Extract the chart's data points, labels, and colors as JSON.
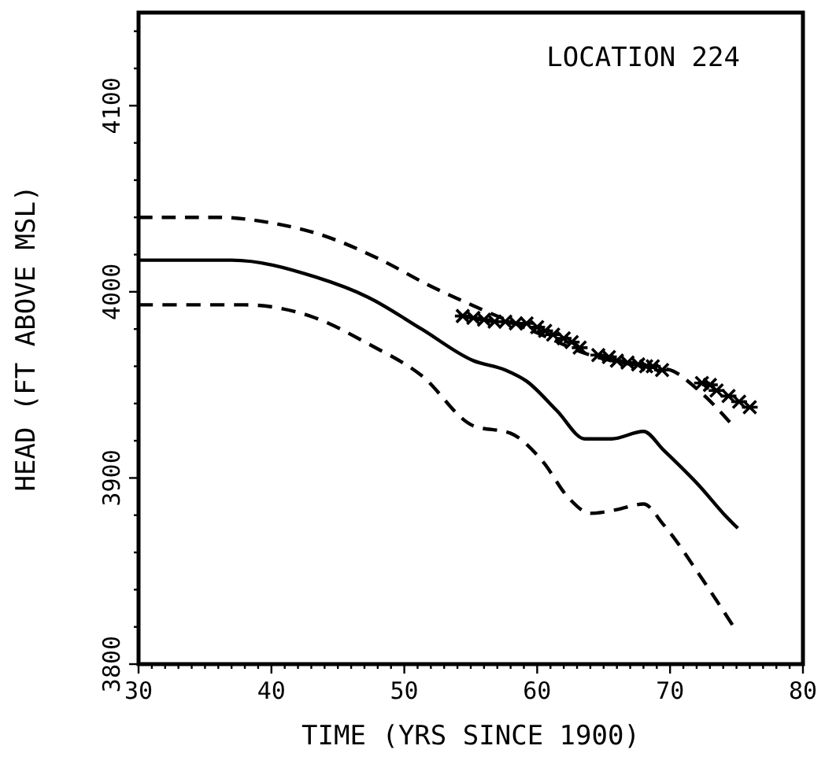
{
  "chart_data": {
    "type": "line",
    "xlabel": "TIME (YRS SINCE 1900)",
    "ylabel": "HEAD (FT ABOVE MSL)",
    "annotations": [
      "LOCATION 224"
    ],
    "xlim": [
      30,
      80
    ],
    "ylim": [
      3800,
      4150
    ],
    "xticks": [
      30,
      {
        "value": 31,
        "label": null
      },
      {
        "value": 32,
        "label": null
      },
      {
        "value": 33,
        "label": null
      },
      {
        "value": 34,
        "label": null
      },
      {
        "value": 35,
        "label": null
      },
      {
        "value": 36,
        "label": null
      },
      {
        "value": 37,
        "label": null
      },
      {
        "value": 38,
        "label": null
      },
      {
        "value": 39,
        "label": null
      },
      40,
      {
        "value": 41,
        "label": null
      },
      {
        "value": 42,
        "label": null
      },
      {
        "value": 43,
        "label": null
      },
      {
        "value": 44,
        "label": null
      },
      {
        "value": 45,
        "label": null
      },
      {
        "value": 46,
        "label": null
      },
      {
        "value": 47,
        "label": null
      },
      {
        "value": 48,
        "label": null
      },
      {
        "value": 49,
        "label": null
      },
      50,
      {
        "value": 51,
        "label": null
      },
      {
        "value": 52,
        "label": null
      },
      {
        "value": 53,
        "label": null
      },
      {
        "value": 54,
        "label": null
      },
      {
        "value": 55,
        "label": null
      },
      {
        "value": 56,
        "label": null
      },
      {
        "value": 57,
        "label": null
      },
      {
        "value": 58,
        "label": null
      },
      {
        "value": 59,
        "label": null
      },
      60,
      {
        "value": 61,
        "label": null
      },
      {
        "value": 62,
        "label": null
      },
      {
        "value": 63,
        "label": null
      },
      {
        "value": 64,
        "label": null
      },
      {
        "value": 65,
        "label": null
      },
      {
        "value": 66,
        "label": null
      },
      {
        "value": 67,
        "label": null
      },
      {
        "value": 68,
        "label": null
      },
      {
        "value": 69,
        "label": null
      },
      70,
      {
        "value": 71,
        "label": null
      },
      {
        "value": 72,
        "label": null
      },
      {
        "value": 73,
        "label": null
      },
      {
        "value": 74,
        "label": null
      },
      {
        "value": 75,
        "label": null
      },
      {
        "value": 76,
        "label": null
      },
      {
        "value": 77,
        "label": null
      },
      {
        "value": 78,
        "label": null
      },
      {
        "value": 79,
        "label": null
      },
      80
    ],
    "yticks": [
      3800,
      {
        "value": 3820,
        "label": null
      },
      {
        "value": 3840,
        "label": null
      },
      {
        "value": 3860,
        "label": null
      },
      {
        "value": 3880,
        "label": null
      },
      3900,
      {
        "value": 3920,
        "label": null
      },
      {
        "value": 3940,
        "label": null
      },
      {
        "value": 3960,
        "label": null
      },
      {
        "value": 3980,
        "label": null
      },
      4000,
      {
        "value": 4020,
        "label": null
      },
      {
        "value": 4040,
        "label": null
      },
      {
        "value": 4060,
        "label": null
      },
      {
        "value": 4080,
        "label": null
      },
      4100,
      {
        "value": 4120,
        "label": null
      },
      {
        "value": 4140,
        "label": null
      }
    ],
    "grid": false,
    "series": [
      {
        "line_style": "dashed",
        "marker": "none",
        "color": "#000000",
        "x": [
          30,
          36,
          40,
          44,
          48,
          52,
          56,
          60,
          64,
          68,
          70,
          72,
          74.5
        ],
        "values": [
          4040,
          4040,
          4037,
          4030,
          4018,
          4003,
          3990,
          3978,
          3966,
          3960,
          3958,
          3948,
          3930
        ]
      },
      {
        "line_style": "solid",
        "marker": "none",
        "color": "#000000",
        "x": [
          30,
          37,
          43.3,
          47.3,
          51.3,
          55.2,
          57.6,
          59.2,
          61.5,
          63.6,
          65.6,
          68,
          69.5,
          72.3,
          74,
          75.1
        ],
        "values": [
          4017,
          4017,
          4008,
          3997,
          3980,
          3963,
          3958,
          3952,
          3936,
          3921,
          3921,
          3925,
          3915,
          3895,
          3881,
          3873
        ]
      },
      {
        "line_style": "dashed",
        "marker": "none",
        "color": "#000000",
        "x": [
          30,
          38,
          43.3,
          47.3,
          51.3,
          55.2,
          58,
          60.4,
          62.4,
          64,
          66,
          68,
          69.5,
          72.3,
          74.7
        ],
        "values": [
          3993,
          3993,
          3986,
          3972,
          3955,
          3928,
          3924,
          3909,
          3889,
          3881,
          3883,
          3886,
          3875,
          3847,
          3821
        ]
      },
      {
        "type": "scatter",
        "marker": "cross",
        "color": "#000000",
        "x": [
          54.4,
          55.2,
          56,
          56.8,
          57.6,
          58.4,
          59.2,
          60,
          60.6,
          61.2,
          62,
          62.6,
          63.2,
          64.6,
          65.4,
          66,
          66.8,
          67.6,
          68.2,
          68.7,
          69.4,
          72.4,
          73,
          73.5,
          74.4,
          75.2,
          76
        ],
        "values": [
          3987,
          3986,
          3985,
          3984,
          3984,
          3983,
          3983,
          3981,
          3979,
          3977,
          3975,
          3973,
          3970,
          3966,
          3965,
          3963,
          3962,
          3961,
          3960,
          3960,
          3958,
          3951,
          3950,
          3947,
          3944,
          3941,
          3938
        ]
      }
    ]
  }
}
